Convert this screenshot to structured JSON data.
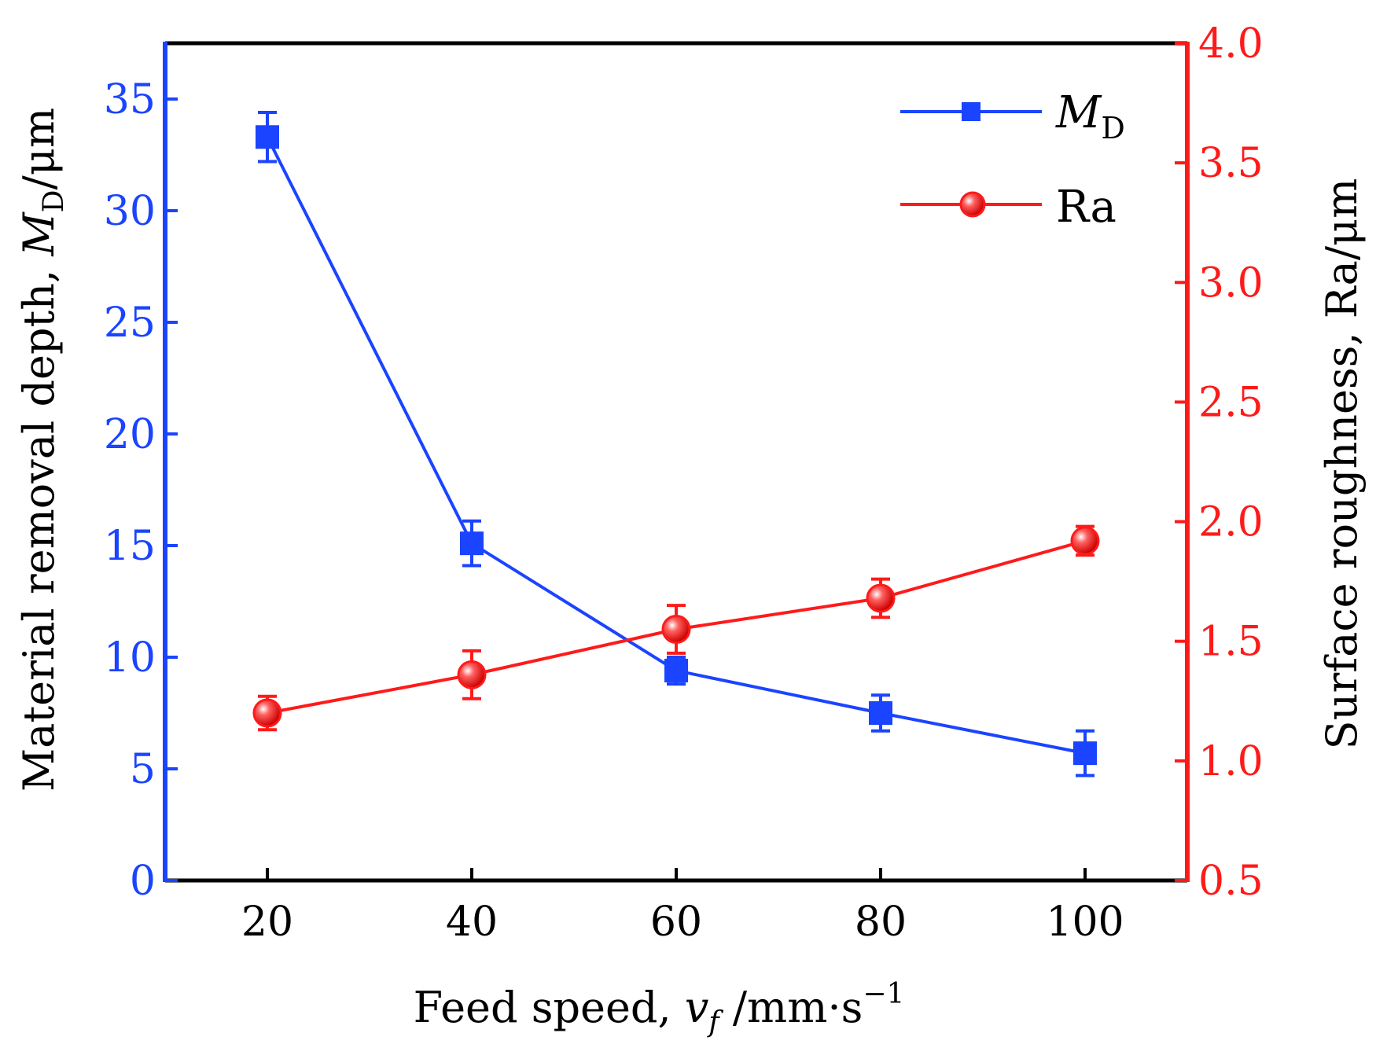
{
  "chart_data": {
    "type": "line",
    "x": [
      20,
      40,
      60,
      80,
      100
    ],
    "xlabel": {
      "main": "Feed speed, ",
      "var": "v",
      "sub": "f",
      "unit": " /mm·s",
      "sup": "−1"
    },
    "xticks": [
      "20",
      "40",
      "60",
      "80",
      "100"
    ],
    "xlim": [
      10,
      110
    ],
    "y_left": {
      "label": {
        "main": "Material removal depth, ",
        "var": "M",
        "sub": "D",
        "unit": "/μm"
      },
      "ylim": [
        0,
        37.5
      ],
      "ticks": [
        "0",
        "5",
        "10",
        "15",
        "20",
        "25",
        "30",
        "35"
      ],
      "tick_values": [
        0,
        5,
        10,
        15,
        20,
        25,
        30,
        35
      ],
      "color": "#1a44ff"
    },
    "y_right": {
      "label": "Surface roughness, Ra/μm",
      "ylim": [
        0.5,
        4.0
      ],
      "ticks": [
        "0.5",
        "1.0",
        "1.5",
        "2.0",
        "2.5",
        "3.0",
        "3.5",
        "4.0"
      ],
      "tick_values": [
        0.5,
        1.0,
        1.5,
        2.0,
        2.5,
        3.0,
        3.5,
        4.0
      ],
      "color": "#ff1a1a"
    },
    "series": [
      {
        "name_main": "M",
        "name_sub": "D",
        "axis": "left",
        "marker": "square",
        "color": "#1a44ff",
        "values": [
          33.3,
          15.1,
          9.4,
          7.5,
          5.7
        ],
        "errors": [
          1.1,
          1.0,
          0.6,
          0.8,
          1.0
        ]
      },
      {
        "name": "Ra",
        "axis": "right",
        "marker": "circle",
        "color": "#ff1a1a",
        "values": [
          1.2,
          1.36,
          1.55,
          1.68,
          1.92
        ],
        "errors": [
          0.07,
          0.1,
          0.1,
          0.08,
          0.06
        ]
      }
    ],
    "legend": "top-right",
    "grid": false
  }
}
